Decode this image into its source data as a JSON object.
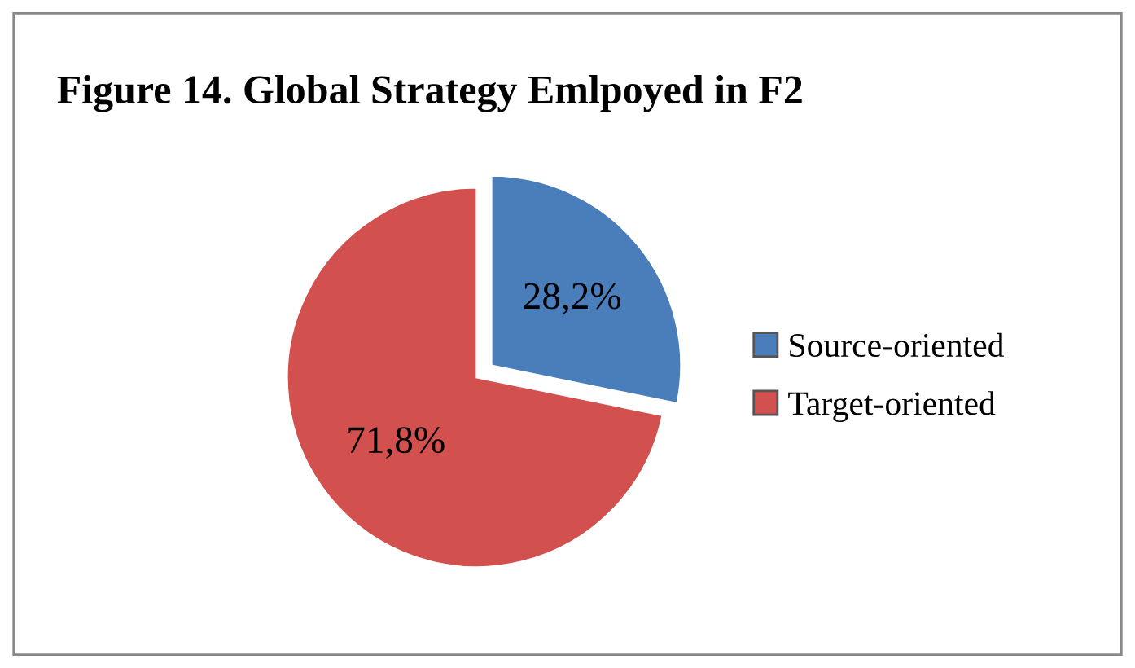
{
  "chart_data": {
    "type": "pie",
    "title": "Figure 14. Global Strategy Emlpoyed in F2",
    "categories": [
      "Source-oriented",
      "Target-oriented"
    ],
    "values": [
      28.2,
      71.8
    ],
    "colors": [
      "#4a7ebb",
      "#d2504d"
    ],
    "value_labels": [
      "28,2%",
      "71,8%"
    ],
    "legend": "right"
  }
}
